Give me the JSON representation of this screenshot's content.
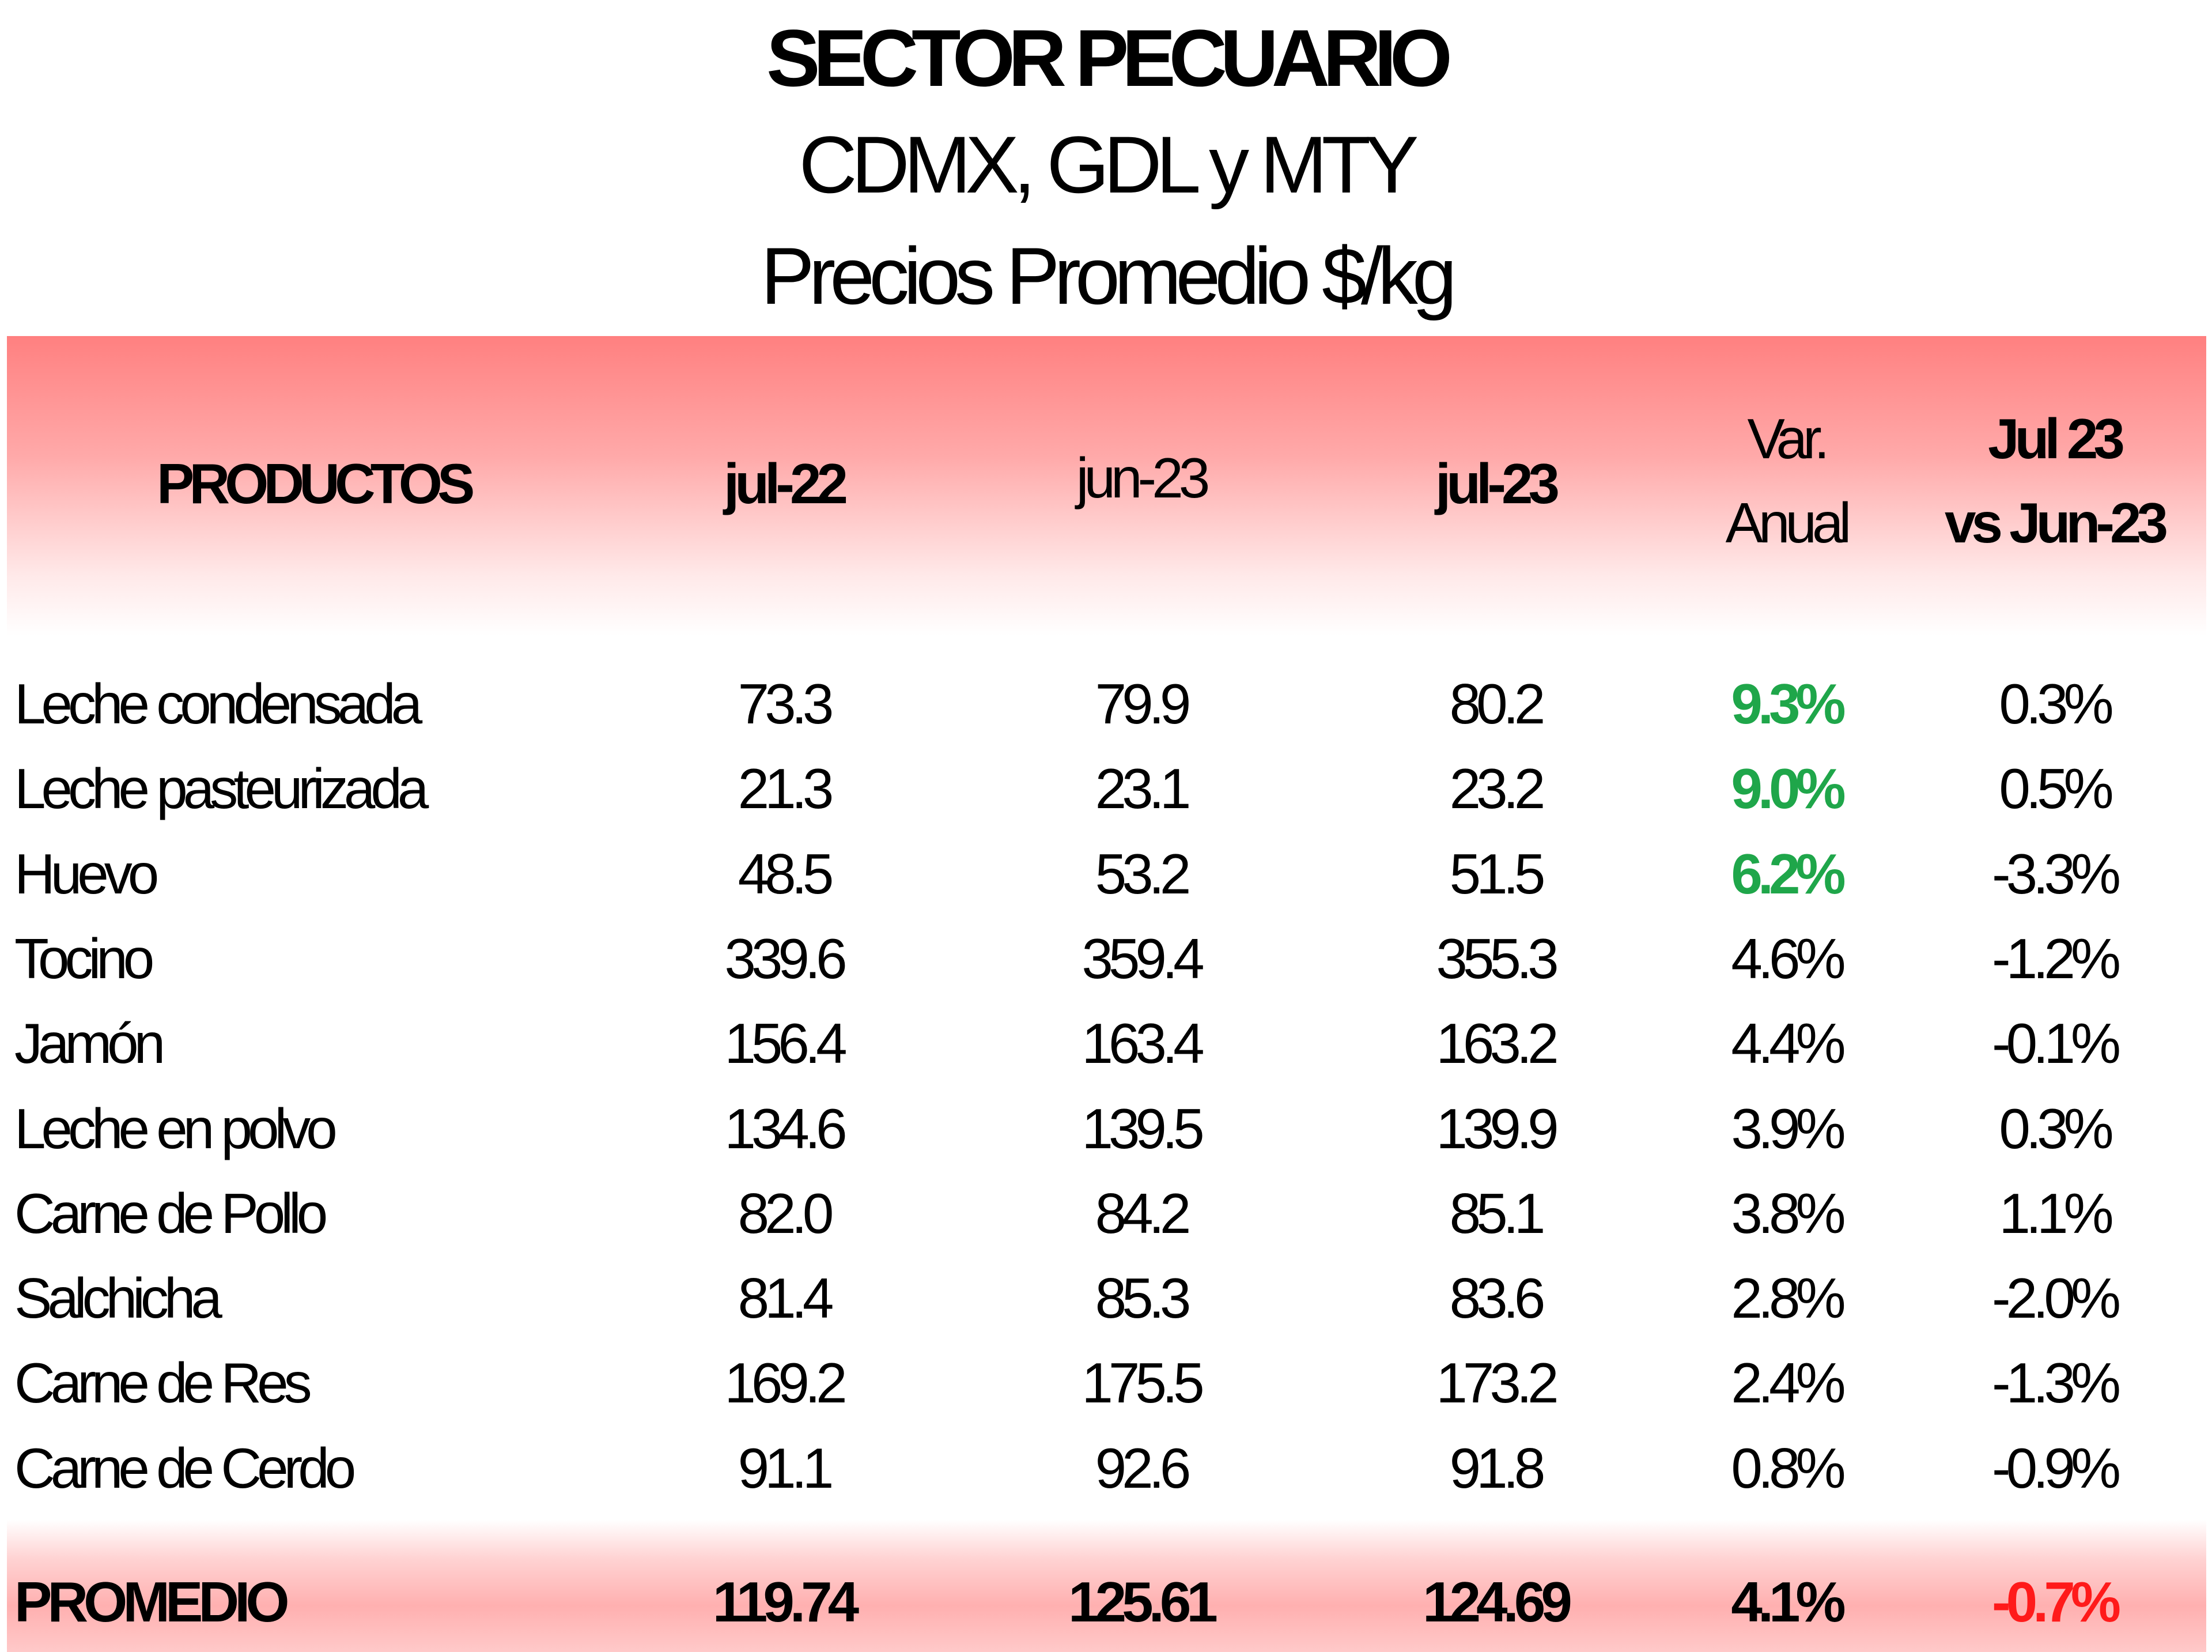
{
  "title": "SECTOR PECUARIO",
  "subtitle": "CDMX, GDL y MTY",
  "unit_line": "Precios Promedio $/kg",
  "header": {
    "productos": "PRODUCTOS",
    "col1": "jul-22",
    "col2": "jun-23",
    "col3": "jul-23",
    "col4_line1": "Var.",
    "col4_line2": "Anual",
    "col5_line1": "Jul 23",
    "col5_line2": "vs Jun-23"
  },
  "rows": [
    {
      "producto": "Leche condensada",
      "jul22": "73.3",
      "jun23": "79.9",
      "jul23": "80.2",
      "var_anual": "9.3%",
      "var_mensual": "0.3%"
    },
    {
      "producto": "Leche pasteurizada",
      "jul22": "21.3",
      "jun23": "23.1",
      "jul23": "23.2",
      "var_anual": "9.0%",
      "var_mensual": "0.5%"
    },
    {
      "producto": "Huevo",
      "jul22": "48.5",
      "jun23": "53.2",
      "jul23": "51.5",
      "var_anual": "6.2%",
      "var_mensual": "-3.3%"
    },
    {
      "producto": "Tocino",
      "jul22": "339.6",
      "jun23": "359.4",
      "jul23": "355.3",
      "var_anual": "4.6%",
      "var_mensual": "-1.2%"
    },
    {
      "producto": "Jamón",
      "jul22": "156.4",
      "jun23": "163.4",
      "jul23": "163.2",
      "var_anual": "4.4%",
      "var_mensual": "-0.1%"
    },
    {
      "producto": "Leche en polvo",
      "jul22": "134.6",
      "jun23": "139.5",
      "jul23": "139.9",
      "var_anual": "3.9%",
      "var_mensual": "0.3%"
    },
    {
      "producto": "Carne de Pollo",
      "jul22": "82.0",
      "jun23": "84.2",
      "jul23": "85.1",
      "var_anual": "3.8%",
      "var_mensual": "1.1%"
    },
    {
      "producto": "Salchicha",
      "jul22": "81.4",
      "jun23": "85.3",
      "jul23": "83.6",
      "var_anual": "2.8%",
      "var_mensual": "-2.0%"
    },
    {
      "producto": "Carne de Res",
      "jul22": "169.2",
      "jun23": "175.5",
      "jul23": "173.2",
      "var_anual": "2.4%",
      "var_mensual": "-1.3%"
    },
    {
      "producto": "Carne de Cerdo",
      "jul22": "91.1",
      "jun23": "92.6",
      "jul23": "91.8",
      "var_anual": "0.8%",
      "var_mensual": "-0.9%"
    }
  ],
  "promedio": {
    "label": "PROMEDIO",
    "jul22": "119.74",
    "jun23": "125.61",
    "jul23": "124.69",
    "var_anual": "4.1%",
    "var_mensual": "-0.7%"
  },
  "colors": {
    "header_band": "#ff8080",
    "highlight_green": "#1fa64a",
    "highlight_red": "#ff1a1a"
  }
}
